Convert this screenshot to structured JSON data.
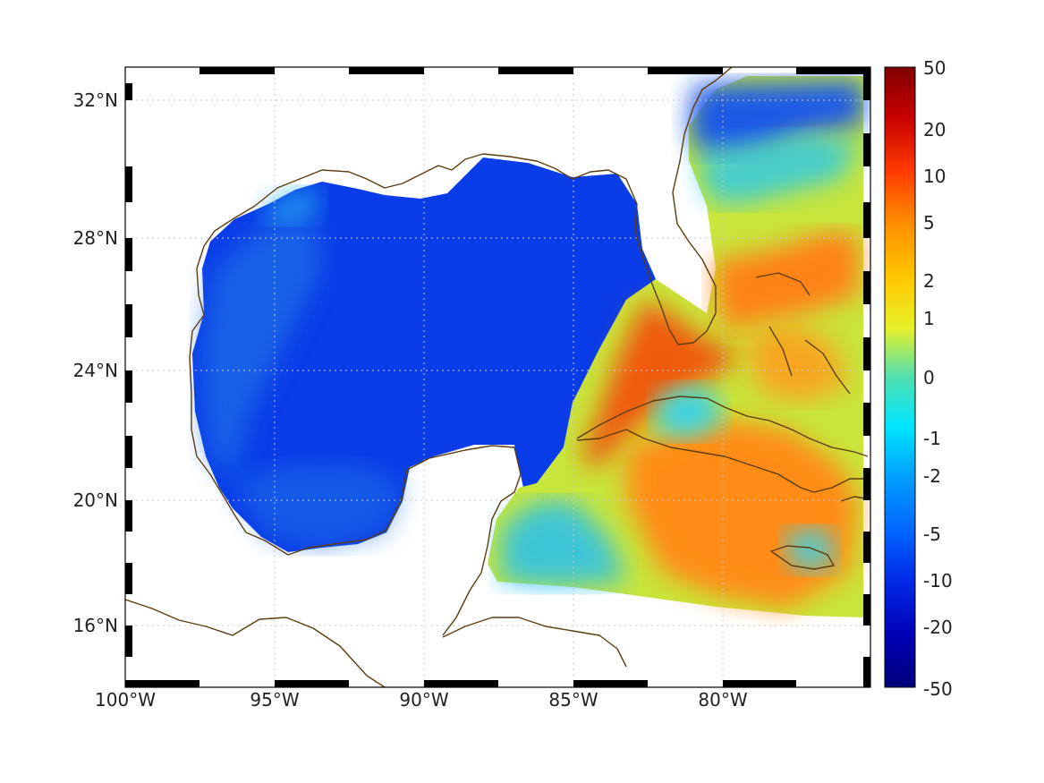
{
  "map": {
    "lon_ticks": [
      "100°W",
      "95°W",
      "90°W",
      "85°W",
      "80°W"
    ],
    "lat_ticks": [
      "32°N",
      "28°N",
      "24°N",
      "20°N",
      "16°N"
    ],
    "lon_range": [
      -100,
      -75
    ],
    "lat_range": [
      14.2,
      33
    ],
    "grid": true,
    "coastline_color": "#5c3c10",
    "field_colors": {
      "strong_negative": "#0a32e6",
      "negative": "#1e6ee6",
      "slight_negative": "#00a0ff",
      "near_zero": "#50e0c8",
      "slight_positive": "#e6f028",
      "positive": "#ffa014",
      "strong_positive": "#f05a0a"
    }
  },
  "colorbar": {
    "tick_labels": [
      "50",
      "20",
      "10",
      "5",
      "2",
      "1",
      "0",
      "-1",
      "-2",
      "-5",
      "-10",
      "-20",
      "-50"
    ],
    "colors": [
      "#800000",
      "#c80000",
      "#ff3c00",
      "#ff8c00",
      "#ffc800",
      "#e6f028",
      "#50e0b0",
      "#00e6ff",
      "#00a0ff",
      "#0064ff",
      "#0028e6",
      "#0000b4",
      "#00007a"
    ]
  }
}
